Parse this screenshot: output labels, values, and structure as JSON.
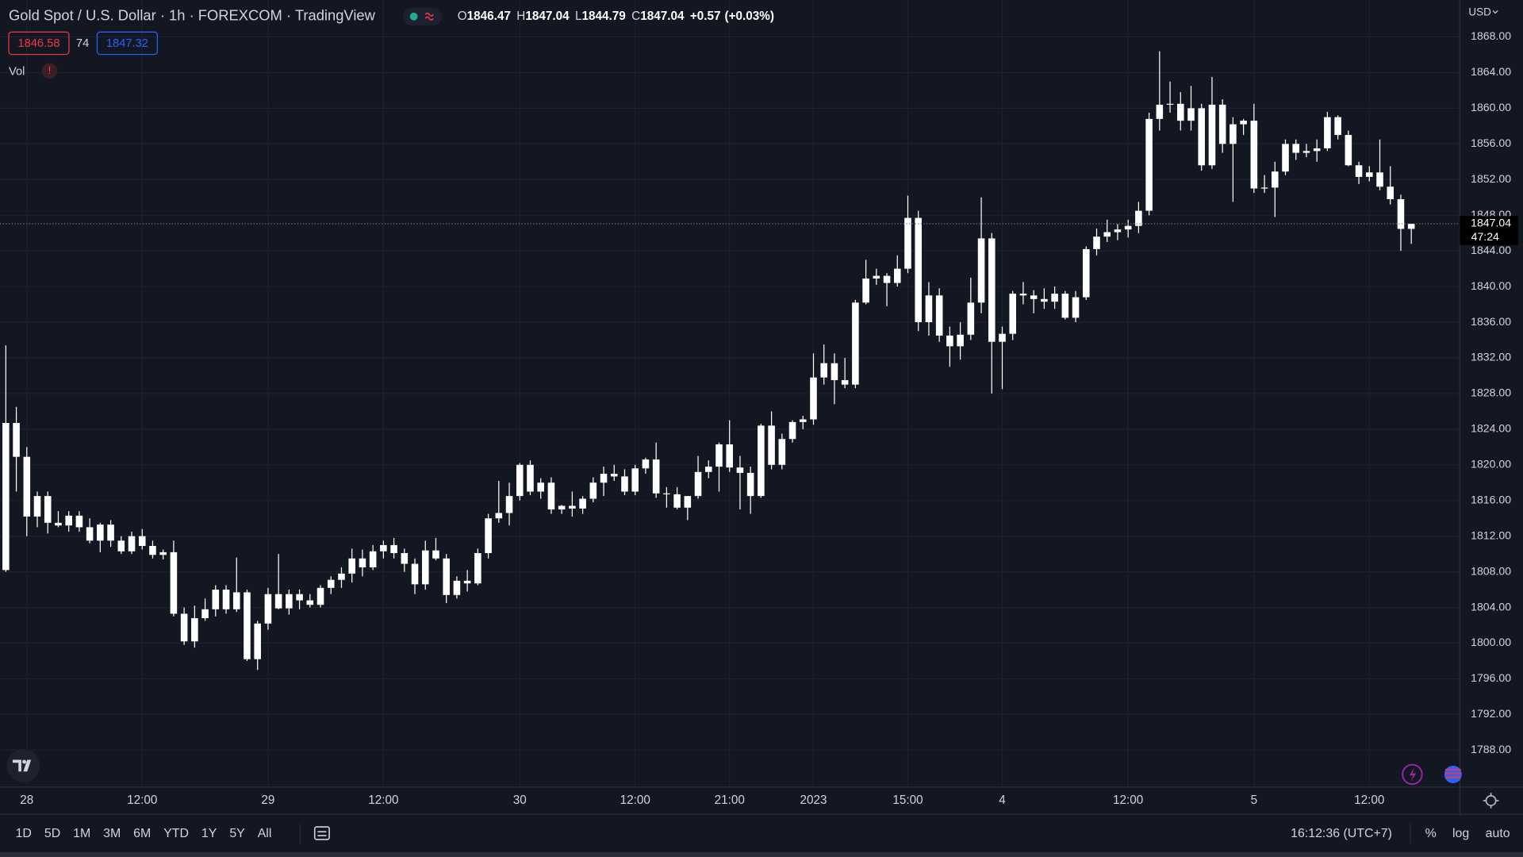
{
  "header": {
    "title": "Gold Spot / U.S. Dollar · 1h · FOREXCOM · TradingView",
    "ohlc_labels": [
      "O",
      "H",
      "L",
      "C"
    ],
    "change": "+0.57",
    "change_pct": "(+0.03%)",
    "sell": 1846.58,
    "spread": 74,
    "buy": 1847.32,
    "volume_label": "Vol",
    "volume_alert": "!"
  },
  "price_axis": {
    "currency": "USD",
    "countdown": "47:24"
  },
  "toolbar": {
    "ranges": [
      "1D",
      "5D",
      "1M",
      "3M",
      "6M",
      "YTD",
      "1Y",
      "5Y",
      "All"
    ],
    "clock": "16:12:36 (UTC+7)",
    "percent": "%",
    "log": "log",
    "auto": "auto"
  },
  "chart_data": {
    "type": "candlestick",
    "color": "#ffffff",
    "grid": true,
    "log_scale": false,
    "ylim": [
      1783.86,
      1872.14
    ],
    "yticks": [
      {
        "value": 1788,
        "label": "1788.00"
      },
      {
        "value": 1792,
        "label": "1792.00"
      },
      {
        "value": 1796,
        "label": "1796.00"
      },
      {
        "value": 1800,
        "label": "1800.00"
      },
      {
        "value": 1804,
        "label": "1804.00"
      },
      {
        "value": 1808,
        "label": "1808.00"
      },
      {
        "value": 1812,
        "label": "1812.00"
      },
      {
        "value": 1816,
        "label": "1816.00"
      },
      {
        "value": 1820,
        "label": "1820.00"
      },
      {
        "value": 1824,
        "label": "1824.00"
      },
      {
        "value": 1828,
        "label": "1828.00"
      },
      {
        "value": 1832,
        "label": "1832.00"
      },
      {
        "value": 1836,
        "label": "1836.00"
      },
      {
        "value": 1840,
        "label": "1840.00"
      },
      {
        "value": 1844,
        "label": "1844.00"
      },
      {
        "value": 1848,
        "label": "1848.00"
      },
      {
        "value": 1852,
        "label": "1852.00"
      },
      {
        "value": 1856,
        "label": "1856.00"
      },
      {
        "value": 1860,
        "label": "1860.00"
      },
      {
        "value": 1864,
        "label": "1864.00"
      },
      {
        "value": 1868,
        "label": "1868.00"
      }
    ],
    "categories": [
      null,
      null,
      "28",
      null,
      null,
      null,
      null,
      null,
      null,
      null,
      null,
      null,
      null,
      "12:00",
      null,
      null,
      null,
      null,
      null,
      null,
      null,
      null,
      null,
      null,
      null,
      "29",
      null,
      null,
      null,
      null,
      null,
      null,
      null,
      null,
      null,
      null,
      "12:00",
      null,
      null,
      null,
      null,
      null,
      null,
      null,
      null,
      null,
      null,
      null,
      null,
      "30",
      null,
      null,
      null,
      null,
      null,
      null,
      null,
      null,
      null,
      null,
      "12:00",
      null,
      null,
      null,
      null,
      null,
      null,
      null,
      null,
      "21:00",
      null,
      null,
      null,
      null,
      null,
      null,
      null,
      "2023",
      null,
      null,
      null,
      null,
      null,
      null,
      null,
      null,
      "15:00",
      null,
      null,
      null,
      null,
      null,
      null,
      null,
      null,
      "4",
      null,
      null,
      null,
      null,
      null,
      null,
      null,
      null,
      null,
      null,
      null,
      "12:00",
      null,
      null,
      null,
      null,
      null,
      null,
      null,
      null,
      null,
      null,
      null,
      "5",
      null,
      null,
      null,
      null,
      null,
      null,
      null,
      null,
      null,
      null,
      "12:00",
      null,
      null,
      null,
      null
    ],
    "open": [
      1808.2,
      1824.7,
      1820.9,
      1814.2,
      1816.5,
      1813.5,
      1813.2,
      1814.3,
      1813,
      1811.5,
      1813.3,
      1811.5,
      1810.3,
      1812,
      1810.9,
      1809.9,
      1810.2,
      1803.3,
      1800.2,
      1802.8,
      1803.8,
      1806,
      1803.8,
      1805.7,
      1798.2,
      1802.2,
      1805.5,
      1803.9,
      1805.5,
      1804.8,
      1804.3,
      1806.2,
      1807.1,
      1807.8,
      1809.5,
      1808.5,
      1810.3,
      1811,
      1810.1,
      1808.9,
      1806.6,
      1810.4,
      1809.5,
      1805.4,
      1807,
      1806.7,
      1810.1,
      1814,
      1814.6,
      1816.5,
      1820,
      1817,
      1818,
      1815,
      1815.4,
      1815.1,
      1816.2,
      1818,
      1819,
      1818.7,
      1817,
      1819.6,
      1820.6,
      1816.8,
      1816.7,
      1815.2,
      1816.5,
      1819.2,
      1819.8,
      1822.3,
      1819.7,
      1819.1,
      1816.5,
      1824.4,
      1820,
      1822.9,
      1824.8,
      1825.1,
      1829.8,
      1831.4,
      1829.5,
      1829,
      1838.2,
      1840.9,
      1841.2,
      1840.4,
      1842,
      1847.7,
      1836,
      1839,
      1834.5,
      1833.3,
      1834.6,
      1838.2,
      1845.4,
      1833.8,
      1834.7,
      1839.2,
      1839,
      1838.6,
      1838.3,
      1839.2,
      1836.5,
      1838.8,
      1844.2,
      1845.6,
      1846.1,
      1846.4,
      1846.8,
      1848.5,
      1858.8,
      1860.4,
      1860.5,
      1858.6,
      1860,
      1853.6,
      1860.4,
      1856,
      1858.2,
      1858.6,
      1851,
      1851.1,
      1852.9,
      1856,
      1855,
      1855.2,
      1855.5,
      1859,
      1857,
      1853.6,
      1852.3,
      1852.8,
      1851.2,
      1849.8,
      1846.47
    ],
    "high": [
      1833.4,
      1826.5,
      1822,
      1817,
      1817,
      1814.8,
      1814.8,
      1814.8,
      1814,
      1813.5,
      1813.8,
      1812,
      1812.5,
      1812.8,
      1811.5,
      1810.5,
      1811.5,
      1804,
      1804.2,
      1805,
      1806.5,
      1806.5,
      1809.6,
      1806,
      1802.5,
      1806.2,
      1810,
      1806,
      1806,
      1805.5,
      1806.5,
      1807.5,
      1808.5,
      1810.6,
      1810.5,
      1811,
      1811.5,
      1811.8,
      1810.6,
      1809.5,
      1811.5,
      1811.8,
      1810,
      1807.5,
      1808.2,
      1810.6,
      1814.5,
      1818.2,
      1818,
      1820.2,
      1820.5,
      1818.5,
      1818.6,
      1815.5,
      1817,
      1816.5,
      1818.6,
      1819.8,
      1820,
      1819.5,
      1820,
      1820.8,
      1822.5,
      1817.5,
      1817.5,
      1816.5,
      1821,
      1820.5,
      1822.5,
      1825,
      1821,
      1819.8,
      1824.6,
      1826,
      1823.5,
      1825,
      1825.5,
      1832.5,
      1833.5,
      1832.5,
      1832,
      1838.5,
      1843,
      1842,
      1841.5,
      1843.5,
      1850.2,
      1848.5,
      1840.5,
      1839.8,
      1835.5,
      1836,
      1841,
      1850,
      1846,
      1835.5,
      1839.5,
      1840.5,
      1839.6,
      1839.8,
      1840,
      1839.5,
      1839.5,
      1844.5,
      1846.5,
      1847.5,
      1847,
      1847.5,
      1849.5,
      1859.5,
      1866.4,
      1863,
      1861.8,
      1862.5,
      1860.5,
      1863.5,
      1861,
      1859,
      1858.8,
      1860.5,
      1852.5,
      1854,
      1856.5,
      1856.5,
      1856,
      1856.5,
      1859.6,
      1859.2,
      1857.5,
      1854,
      1853.5,
      1856.5,
      1853.5,
      1850.3,
      1847.04
    ],
    "low": [
      1808,
      1817,
      1812,
      1813,
      1812.3,
      1813,
      1812.5,
      1812.5,
      1811.2,
      1810.2,
      1810.8,
      1810,
      1810,
      1810.5,
      1809.5,
      1809.4,
      1803,
      1799.8,
      1799.5,
      1802.5,
      1803,
      1803.3,
      1803.5,
      1798,
      1797,
      1801.5,
      1803.8,
      1803.2,
      1803.8,
      1804,
      1804,
      1805.5,
      1806.2,
      1806.8,
      1807.5,
      1808.2,
      1809.5,
      1809.5,
      1808,
      1805.5,
      1806,
      1809.3,
      1804.5,
      1805,
      1805.8,
      1806.5,
      1809.5,
      1813.5,
      1813.2,
      1816,
      1816.6,
      1816.2,
      1814.5,
      1814.5,
      1814.2,
      1814.5,
      1815.8,
      1816.5,
      1818.2,
      1816.6,
      1816.6,
      1819,
      1816.3,
      1815.2,
      1815,
      1813.8,
      1816.2,
      1818.5,
      1817,
      1819.2,
      1815,
      1814.5,
      1816.3,
      1819.5,
      1819.5,
      1822.5,
      1824,
      1824.5,
      1829,
      1826.8,
      1828.6,
      1828.6,
      1838,
      1840.2,
      1837.8,
      1840,
      1841.5,
      1835,
      1834.5,
      1833.8,
      1831,
      1831.8,
      1834,
      1837,
      1828,
      1828.5,
      1834,
      1838,
      1837,
      1837.5,
      1837.5,
      1836.3,
      1836,
      1838.5,
      1843.5,
      1845,
      1845.2,
      1845.5,
      1846,
      1848,
      1857.5,
      1859.5,
      1857.5,
      1857.5,
      1853,
      1853.2,
      1855,
      1849.5,
      1857,
      1850.5,
      1850.5,
      1847.8,
      1852.5,
      1854.2,
      1854.5,
      1854,
      1855.2,
      1856.5,
      1853.5,
      1851.5,
      1851.8,
      1850.8,
      1849.2,
      1844,
      1844.79
    ],
    "close": [
      1824.7,
      1820.9,
      1814.2,
      1816.5,
      1813.5,
      1813.2,
      1814.3,
      1813,
      1811.5,
      1813.3,
      1811.5,
      1810.3,
      1812,
      1810.9,
      1809.9,
      1810.2,
      1803.3,
      1800.2,
      1802.8,
      1803.8,
      1806,
      1803.8,
      1805.7,
      1798.2,
      1802.2,
      1805.5,
      1803.9,
      1805.5,
      1804.8,
      1804.3,
      1806.2,
      1807.1,
      1807.8,
      1809.5,
      1808.5,
      1810.3,
      1811,
      1810.1,
      1808.9,
      1806.6,
      1810.4,
      1809.5,
      1805.4,
      1807,
      1806.7,
      1810.1,
      1814,
      1814.6,
      1816.5,
      1820,
      1817,
      1818,
      1815,
      1815.4,
      1815.1,
      1816.2,
      1818,
      1819,
      1818.7,
      1817,
      1819.6,
      1820.6,
      1816.8,
      1816.7,
      1815.2,
      1816.5,
      1819.2,
      1819.8,
      1822.3,
      1819.7,
      1819.1,
      1816.5,
      1824.4,
      1820,
      1822.9,
      1824.8,
      1825.1,
      1829.8,
      1831.4,
      1829.5,
      1829,
      1838.2,
      1840.9,
      1841.2,
      1840.4,
      1842,
      1847.7,
      1836,
      1839,
      1834.5,
      1833.3,
      1834.6,
      1838.2,
      1845.4,
      1833.8,
      1834.7,
      1839.2,
      1839,
      1838.6,
      1838.3,
      1839.2,
      1836.5,
      1838.8,
      1844.2,
      1845.6,
      1846.1,
      1846.4,
      1846.8,
      1848.5,
      1858.8,
      1860.4,
      1860.5,
      1858.6,
      1860,
      1853.6,
      1860.4,
      1856,
      1858.2,
      1858.6,
      1851,
      1851.1,
      1852.9,
      1856,
      1855,
      1855.2,
      1855.5,
      1859,
      1857,
      1853.6,
      1852.3,
      1852.8,
      1851.2,
      1849.8,
      1846.47,
      1847.04
    ]
  }
}
